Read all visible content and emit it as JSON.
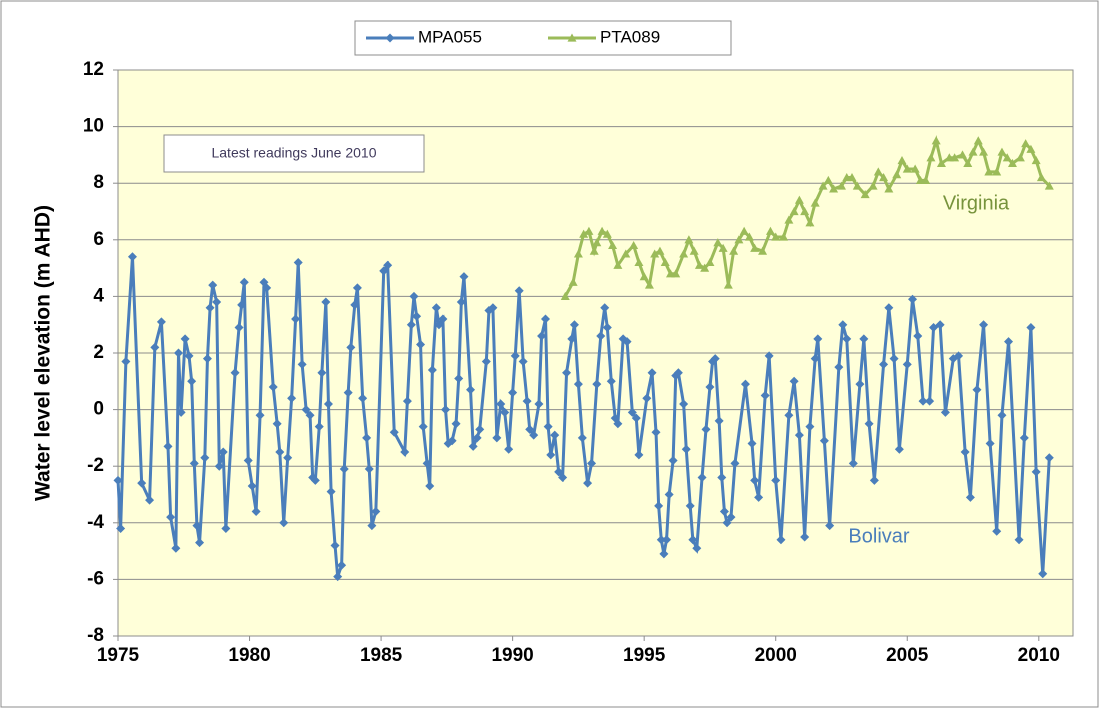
{
  "chart_data": {
    "type": "line",
    "y_label": "Water level elevation  (m AHD)",
    "annotations": [
      "Latest readings June 2010",
      "Virginia",
      "Bolivar"
    ],
    "xlim": [
      1975,
      2011.3
    ],
    "xticks": [
      1975,
      1980,
      1985,
      1990,
      1995,
      2000,
      2005,
      2010
    ],
    "ylim": [
      -8,
      12
    ],
    "yticks": [
      -8,
      -6,
      -4,
      -2,
      0,
      2,
      4,
      6,
      8,
      10,
      12
    ],
    "grid": true,
    "legend": "top",
    "series": [
      {
        "name": "MPA055",
        "color": "#4a7ebb",
        "marker": "diamond",
        "x": [
          1975.0,
          1975.1,
          1975.3,
          1975.55,
          1975.9,
          1976.2,
          1976.4,
          1976.65,
          1976.9,
          1977.0,
          1977.2,
          1977.3,
          1977.4,
          1977.55,
          1977.7,
          1977.8,
          1977.9,
          1978.0,
          1978.1,
          1978.3,
          1978.4,
          1978.5,
          1978.6,
          1978.75,
          1978.85,
          1979.0,
          1979.1,
          1979.45,
          1979.6,
          1979.7,
          1979.8,
          1979.95,
          1980.1,
          1980.25,
          1980.4,
          1980.55,
          1980.65,
          1980.9,
          1981.05,
          1981.15,
          1981.3,
          1981.45,
          1981.6,
          1981.75,
          1981.85,
          1982.0,
          1982.15,
          1982.3,
          1982.4,
          1982.5,
          1982.65,
          1982.75,
          1982.9,
          1983.0,
          1983.1,
          1983.25,
          1983.35,
          1983.5,
          1983.6,
          1983.75,
          1983.85,
          1984.0,
          1984.1,
          1984.3,
          1984.45,
          1984.55,
          1984.65,
          1984.8,
          1985.1,
          1985.25,
          1985.5,
          1985.9,
          1986.0,
          1986.15,
          1986.25,
          1986.35,
          1986.5,
          1986.6,
          1986.75,
          1986.85,
          1986.95,
          1987.1,
          1987.2,
          1987.35,
          1987.45,
          1987.55,
          1987.7,
          1987.85,
          1987.95,
          1988.05,
          1988.15,
          1988.4,
          1988.5,
          1988.65,
          1988.75,
          1989.0,
          1989.1,
          1989.25,
          1989.4,
          1989.55,
          1989.7,
          1989.85,
          1990.0,
          1990.1,
          1990.25,
          1990.4,
          1990.55,
          1990.65,
          1990.8,
          1991.0,
          1991.1,
          1991.25,
          1991.35,
          1991.45,
          1991.6,
          1991.75,
          1991.9,
          1992.05,
          1992.25,
          1992.35,
          1992.5,
          1992.65,
          1992.85,
          1993.0,
          1993.2,
          1993.35,
          1993.5,
          1993.6,
          1993.75,
          1993.9,
          1994.0,
          1994.2,
          1994.35,
          1994.55,
          1994.7,
          1994.8,
          1995.1,
          1995.3,
          1995.45,
          1995.55,
          1995.65,
          1995.75,
          1995.85,
          1995.95,
          1996.1,
          1996.2,
          1996.3,
          1996.5,
          1996.6,
          1996.75,
          1996.85,
          1997.0,
          1997.2,
          1997.35,
          1997.5,
          1997.6,
          1997.7,
          1997.85,
          1997.95,
          1998.05,
          1998.15,
          1998.3,
          1998.45,
          1998.85,
          1999.1,
          1999.2,
          1999.35,
          1999.6,
          1999.75,
          2000.0,
          2000.2,
          2000.5,
          2000.7,
          2000.9,
          2001.1,
          2001.3,
          2001.5,
          2001.6,
          2001.85,
          2002.05,
          2002.4,
          2002.55,
          2002.7,
          2002.95,
          2003.2,
          2003.35,
          2003.55,
          2003.75,
          2004.1,
          2004.3,
          2004.5,
          2004.7,
          2005.0,
          2005.2,
          2005.4,
          2005.6,
          2005.85,
          2006.0,
          2006.25,
          2006.45,
          2006.75,
          2006.95,
          2007.2,
          2007.4,
          2007.65,
          2007.9,
          2008.15,
          2008.4,
          2008.6,
          2008.85,
          2009.25,
          2009.45,
          2009.7,
          2009.9,
          2010.15,
          2010.4
        ],
        "values": [
          -2.5,
          -4.2,
          1.7,
          5.4,
          -2.6,
          -3.2,
          2.2,
          3.1,
          -1.3,
          -3.8,
          -4.9,
          2.0,
          -0.1,
          2.5,
          1.9,
          1.0,
          -1.9,
          -4.1,
          -4.7,
          -1.7,
          1.8,
          3.6,
          4.4,
          3.8,
          -2.0,
          -1.5,
          -4.2,
          1.3,
          2.9,
          3.7,
          4.5,
          -1.8,
          -2.7,
          -3.6,
          -0.2,
          4.5,
          4.3,
          0.8,
          -0.5,
          -1.5,
          -4.0,
          -1.7,
          0.4,
          3.2,
          5.2,
          1.6,
          0.0,
          -0.2,
          -2.4,
          -2.5,
          -0.6,
          1.3,
          3.8,
          0.2,
          -2.9,
          -4.8,
          -5.9,
          -5.5,
          -2.1,
          0.6,
          2.2,
          3.7,
          4.3,
          0.4,
          -1.0,
          -2.1,
          -4.1,
          -3.6,
          4.9,
          5.1,
          -0.8,
          -1.5,
          0.3,
          3.0,
          4.0,
          3.3,
          2.3,
          -0.6,
          -1.9,
          -2.7,
          1.4,
          3.6,
          3.0,
          3.2,
          0.0,
          -1.2,
          -1.1,
          -0.5,
          1.1,
          3.8,
          4.7,
          0.7,
          -1.3,
          -1.0,
          -0.7,
          1.7,
          3.5,
          3.6,
          -1.0,
          0.2,
          -0.1,
          -1.4,
          0.6,
          1.9,
          4.2,
          1.7,
          0.3,
          -0.7,
          -0.9,
          0.2,
          2.6,
          3.2,
          -0.6,
          -1.6,
          -0.9,
          -2.2,
          -2.4,
          1.3,
          2.5,
          3.0,
          0.9,
          -1.0,
          -2.6,
          -1.9,
          0.9,
          2.6,
          3.6,
          2.9,
          1.0,
          -0.3,
          -0.5,
          2.5,
          2.4,
          -0.1,
          -0.3,
          -1.6,
          0.4,
          1.3,
          -0.8,
          -3.4,
          -4.6,
          -5.1,
          -4.6,
          -3.0,
          -1.8,
          1.2,
          1.3,
          0.2,
          -1.4,
          -3.4,
          -4.6,
          -4.9,
          -2.4,
          -0.7,
          0.8,
          1.7,
          1.8,
          -0.4,
          -2.4,
          -3.6,
          -4.0,
          -3.8,
          -1.9,
          0.9,
          -1.2,
          -2.5,
          -3.1,
          0.5,
          1.9,
          -2.5,
          -4.6,
          -0.2,
          1.0,
          -0.9,
          -4.5,
          -0.6,
          1.8,
          2.5,
          -1.1,
          -4.1,
          1.5,
          3.0,
          2.5,
          -1.9,
          0.9,
          2.5,
          -0.5,
          -2.5,
          1.6,
          3.6,
          1.8,
          -1.4,
          1.6,
          3.9,
          2.6,
          0.3,
          0.3,
          2.9,
          3.0,
          -0.1,
          1.8,
          1.9,
          -1.5,
          -3.1,
          0.7,
          3.0,
          -1.2,
          -4.3,
          -0.2,
          2.4,
          -4.6,
          -1.0,
          2.9,
          -2.2,
          -5.8,
          -1.7
        ]
      },
      {
        "name": "PTA089",
        "color": "#9bbb59",
        "marker": "triangle",
        "x": [
          1992.0,
          1992.3,
          1992.5,
          1992.7,
          1992.9,
          1993.1,
          1993.2,
          1993.4,
          1993.6,
          1993.8,
          1994.0,
          1994.3,
          1994.6,
          1994.8,
          1995.0,
          1995.2,
          1995.4,
          1995.6,
          1995.8,
          1996.0,
          1996.2,
          1996.5,
          1996.7,
          1996.9,
          1997.1,
          1997.3,
          1997.5,
          1997.8,
          1998.0,
          1998.2,
          1998.4,
          1998.6,
          1998.8,
          1999.0,
          1999.2,
          1999.5,
          1999.8,
          2000.0,
          2000.3,
          2000.5,
          2000.7,
          2000.9,
          2001.1,
          2001.3,
          2001.5,
          2001.8,
          2002.0,
          2002.2,
          2002.5,
          2002.7,
          2002.9,
          2003.1,
          2003.4,
          2003.7,
          2003.9,
          2004.1,
          2004.3,
          2004.6,
          2004.8,
          2005.0,
          2005.3,
          2005.5,
          2005.7,
          2005.9,
          2006.1,
          2006.3,
          2006.6,
          2006.8,
          2007.1,
          2007.3,
          2007.5,
          2007.7,
          2007.9,
          2008.1,
          2008.4,
          2008.6,
          2008.8,
          2009.0,
          2009.3,
          2009.5,
          2009.7,
          2009.9,
          2010.1,
          2010.4
        ],
        "values": [
          4.0,
          4.5,
          5.5,
          6.2,
          6.3,
          5.6,
          5.9,
          6.3,
          6.2,
          5.8,
          5.1,
          5.5,
          5.8,
          5.2,
          4.7,
          4.4,
          5.5,
          5.6,
          5.2,
          4.8,
          4.8,
          5.5,
          6.0,
          5.6,
          5.1,
          5.0,
          5.2,
          5.9,
          5.7,
          4.4,
          5.6,
          6.0,
          6.3,
          6.1,
          5.7,
          5.6,
          6.3,
          6.1,
          6.1,
          6.7,
          7.0,
          7.4,
          7.0,
          6.6,
          7.3,
          7.9,
          8.1,
          7.8,
          7.9,
          8.2,
          8.2,
          7.9,
          7.6,
          7.9,
          8.4,
          8.2,
          7.8,
          8.3,
          8.8,
          8.5,
          8.5,
          8.1,
          8.1,
          8.9,
          9.5,
          8.7,
          8.9,
          8.9,
          9.0,
          8.7,
          9.1,
          9.5,
          9.1,
          8.4,
          8.4,
          9.1,
          8.9,
          8.7,
          8.9,
          9.4,
          9.2,
          8.8,
          8.2,
          7.9
        ]
      }
    ]
  }
}
